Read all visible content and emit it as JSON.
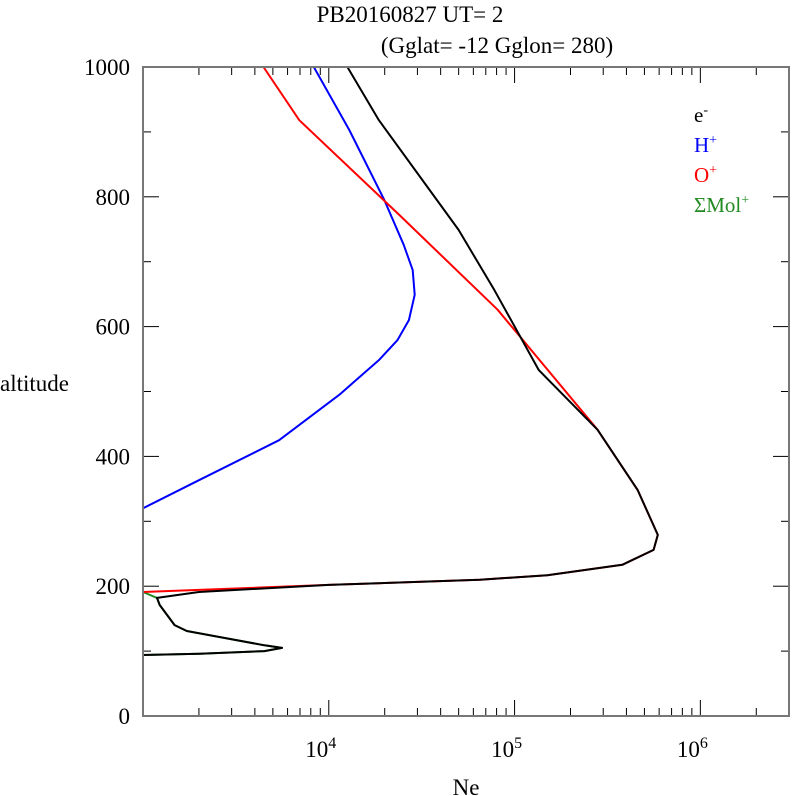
{
  "chart_data": {
    "type": "line",
    "title": "PB20160827   UT=  2",
    "subtitle": "(Gglat= -12   Gglon=  280)",
    "xlabel": "Ne",
    "ylabel": "altitude",
    "xscale": "log",
    "xlim": [
      1000,
      3000000
    ],
    "ylim": [
      0,
      1000
    ],
    "x_ticks": [
      {
        "value": 10000,
        "base": "10",
        "exp": "4"
      },
      {
        "value": 100000,
        "base": "10",
        "exp": "5"
      },
      {
        "value": 1000000,
        "base": "10",
        "exp": "6"
      }
    ],
    "y_ticks": [
      {
        "value": 0,
        "label": "0"
      },
      {
        "value": 200,
        "label": "200"
      },
      {
        "value": 400,
        "label": "400"
      },
      {
        "value": 600,
        "label": "600"
      },
      {
        "value": 800,
        "label": "800"
      },
      {
        "value": 1000,
        "label": "1000"
      }
    ],
    "grid": false,
    "legend_position": "top-right",
    "series": [
      {
        "name": "e",
        "sup": "-",
        "color": "#000000",
        "points": [
          [
            12600,
            1000
          ],
          [
            18600,
            918
          ],
          [
            50000,
            749
          ],
          [
            78000,
            656
          ],
          [
            135000,
            533
          ],
          [
            280000,
            441
          ],
          [
            460000,
            348
          ],
          [
            590000,
            279
          ],
          [
            560000,
            256
          ],
          [
            380000,
            233
          ],
          [
            150000,
            217
          ],
          [
            65000,
            210
          ],
          [
            10000,
            202
          ],
          [
            2000,
            191
          ],
          [
            1190,
            182
          ],
          [
            1230,
            171
          ],
          [
            1480,
            140
          ],
          [
            1720,
            131
          ],
          [
            4500,
            109
          ],
          [
            5600,
            105
          ],
          [
            4500,
            100
          ],
          [
            2020,
            96
          ],
          [
            1000,
            94
          ]
        ]
      },
      {
        "name": "H",
        "sup": "+",
        "color": "#0000ff",
        "points": [
          [
            8300,
            1000
          ],
          [
            12900,
            903
          ],
          [
            19900,
            795
          ],
          [
            25300,
            726
          ],
          [
            28300,
            687
          ],
          [
            29000,
            649
          ],
          [
            27000,
            610
          ],
          [
            23400,
            579
          ],
          [
            18700,
            549
          ],
          [
            11400,
            495
          ],
          [
            5400,
            425
          ],
          [
            2020,
            364
          ],
          [
            1000,
            320
          ]
        ]
      },
      {
        "name": "O",
        "sup": "+",
        "color": "#ff0000",
        "points": [
          [
            4450,
            1000
          ],
          [
            6940,
            918
          ],
          [
            24000,
            772
          ],
          [
            81000,
            626
          ],
          [
            280000,
            441
          ],
          [
            460000,
            348
          ],
          [
            590000,
            279
          ],
          [
            560000,
            256
          ],
          [
            380000,
            233
          ],
          [
            150000,
            217
          ],
          [
            65000,
            210
          ],
          [
            10000,
            202
          ],
          [
            1000,
            191
          ]
        ]
      },
      {
        "name": "ΣMol",
        "sup": "+",
        "color": "#228b22",
        "points": [
          [
            1000,
            191
          ],
          [
            1190,
            182
          ],
          [
            1230,
            171
          ],
          [
            1480,
            140
          ],
          [
            1720,
            131
          ],
          [
            4500,
            109
          ],
          [
            5600,
            105
          ],
          [
            4500,
            100
          ],
          [
            2020,
            96
          ],
          [
            1000,
            94
          ]
        ]
      }
    ]
  }
}
